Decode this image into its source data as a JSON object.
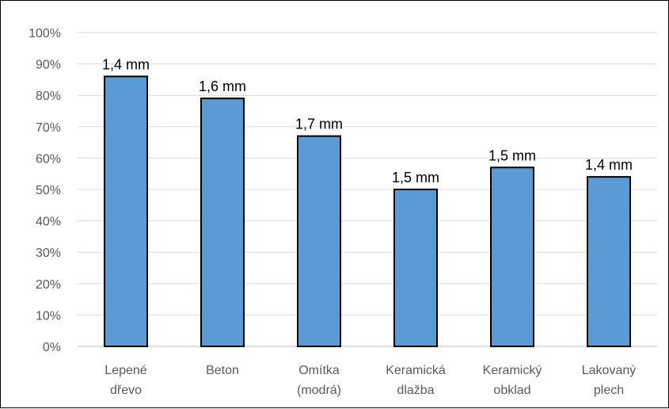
{
  "chart_data": {
    "type": "bar",
    "title": "",
    "xlabel": "",
    "ylabel": "",
    "categories": [
      [
        "Lepené",
        "dřevo"
      ],
      [
        "Beton"
      ],
      [
        "Omítka",
        "(modrá)"
      ],
      [
        "Keramická",
        "dlažba"
      ],
      [
        "Keramický",
        "obklad"
      ],
      [
        "Lakovaný",
        "plech"
      ]
    ],
    "values": [
      86,
      79,
      67,
      50,
      57,
      54
    ],
    "data_labels": [
      "1,4 mm",
      "1,6 mm",
      "1,7 mm",
      "1,5 mm",
      "1,5 mm",
      "1,4 mm"
    ],
    "ylim": [
      0,
      100
    ],
    "y_ticks": [
      0,
      10,
      20,
      30,
      40,
      50,
      60,
      70,
      80,
      90,
      100
    ],
    "y_tick_suffix": "%",
    "grid": true,
    "legend": "none",
    "colors": {
      "bar_fill": "#5b9bd5",
      "bar_stroke": "#000000"
    }
  }
}
